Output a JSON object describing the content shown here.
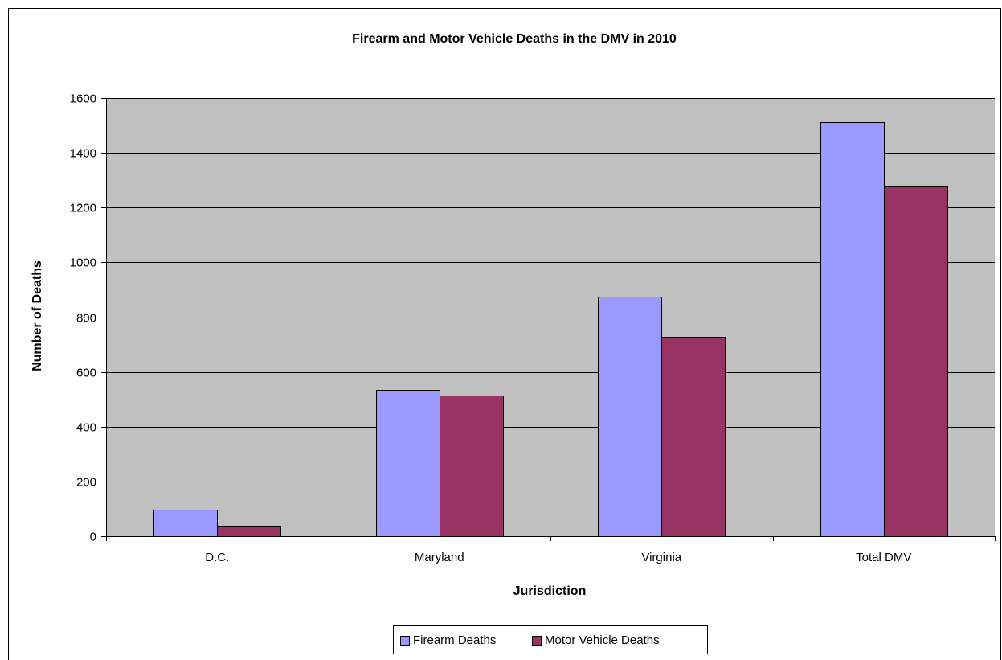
{
  "chart_data": {
    "type": "bar",
    "title": "Firearm and Motor Vehicle Deaths in the DMV in 2010",
    "xlabel": "Jurisdiction",
    "ylabel": "Number of Deaths",
    "categories": [
      "D.C.",
      "Maryland",
      "Virginia",
      "Total DMV"
    ],
    "series": [
      {
        "name": "Firearm Deaths",
        "values": [
          97,
          535,
          874,
          1513
        ],
        "color": "#9999ff"
      },
      {
        "name": "Motor Vehicle Deaths",
        "values": [
          37,
          515,
          727,
          1279
        ],
        "color": "#993366"
      }
    ],
    "ylim": [
      0,
      1600
    ],
    "yticks": [
      "0",
      "200",
      "400",
      "600",
      "800",
      "1000",
      "1200",
      "1400",
      "1600"
    ],
    "grid": true,
    "plot_background": "#c0c0c0",
    "legend_position": "bottom"
  }
}
